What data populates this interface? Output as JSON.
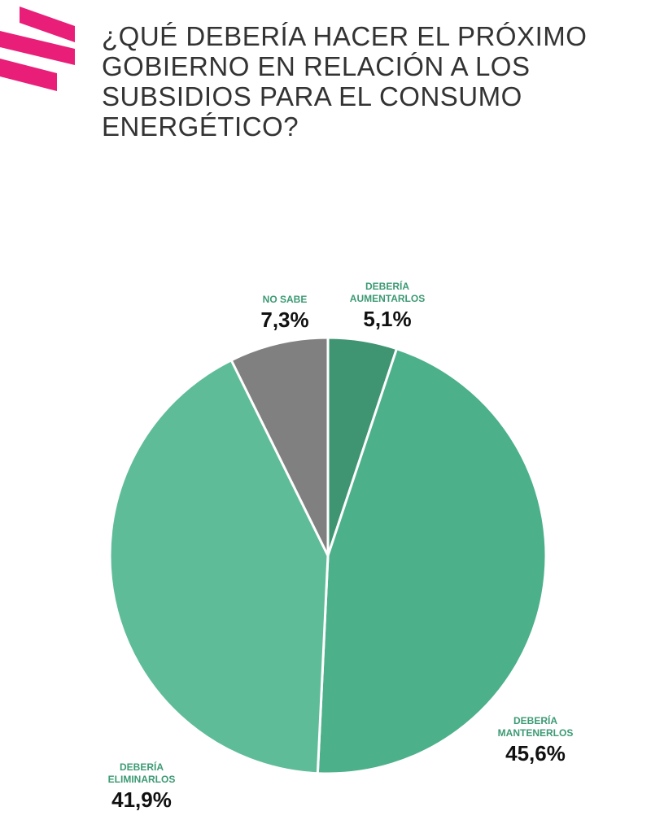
{
  "title": "¿QUÉ DEBERÍA HACER EL PRÓXIMO GOBIERNO EN RELACIÓN A LOS SUBSIDIOS PARA EL CONSUMO ENERGÉTICO?",
  "brand_color": "#e91e78",
  "chart_data": {
    "type": "pie",
    "title": "¿QUÉ DEBERÍA HACER EL PRÓXIMO GOBIERNO EN RELACIÓN A LOS SUBSIDIOS PARA EL CONSUMO ENERGÉTICO?",
    "slices": [
      {
        "label_lines": [
          "DEBERÍA",
          "AUMENTARLOS"
        ],
        "value": 5.1,
        "display": "5,1%",
        "color": "#3f9472"
      },
      {
        "label_lines": [
          "DEBERÍA",
          "MANTENERLOS"
        ],
        "value": 45.6,
        "display": "45,6%",
        "color": "#4cb08a"
      },
      {
        "label_lines": [
          "DEBERÍA",
          "ELIMINARLOS"
        ],
        "value": 41.9,
        "display": "41,9%",
        "color": "#5fbc98"
      },
      {
        "label_lines": [
          "NO SABE"
        ],
        "value": 7.3,
        "display": "7,3%",
        "color": "#808080"
      }
    ],
    "label_color": "#3c9a74",
    "start": "12 o'clock",
    "direction": "clockwise"
  }
}
